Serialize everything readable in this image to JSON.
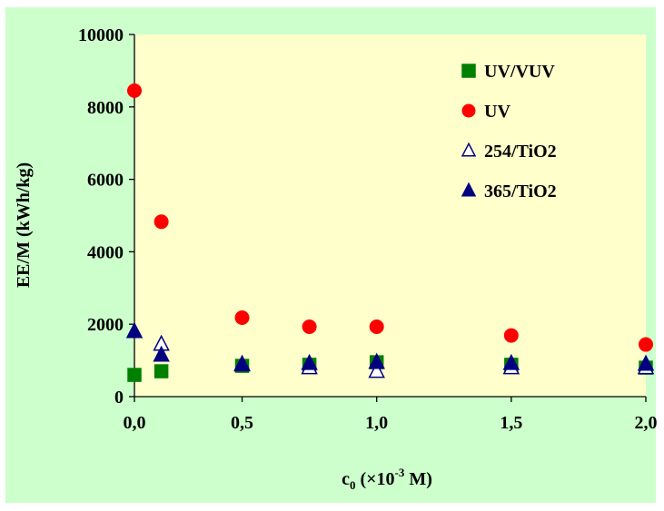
{
  "chart_data": {
    "type": "scatter",
    "title": "",
    "xlabel": {
      "main": "c",
      "sub": "0",
      "rest": " (×10",
      "sup": "-3",
      "end": " M)"
    },
    "ylabel": "EE/M (kWh/kg)",
    "xlim": [
      0.1,
      2.0
    ],
    "ylim": [
      0,
      10000
    ],
    "x_ticks": [
      {
        "value": 0.0,
        "label": "0,0"
      },
      {
        "value": 0.5,
        "label": "0,5"
      },
      {
        "value": 1.0,
        "label": "1,0"
      },
      {
        "value": 1.5,
        "label": "1,5"
      },
      {
        "value": 2.0,
        "label": "2,0"
      }
    ],
    "y_ticks": [
      {
        "value": 0,
        "label": "0"
      },
      {
        "value": 2000,
        "label": "2000"
      },
      {
        "value": 4000,
        "label": "4000"
      },
      {
        "value": 6000,
        "label": "6000"
      },
      {
        "value": 8000,
        "label": "8000"
      },
      {
        "value": 10000,
        "label": "10000"
      }
    ],
    "grid": false,
    "legend_position": "top-right",
    "plot_background": "#ffffcc",
    "outer_background": "#ccffcc",
    "series": [
      {
        "name": "UV/VUV",
        "marker": "square",
        "color": "#008000",
        "filled": true,
        "x": [
          0.1,
          0.2,
          0.5,
          0.75,
          1.0,
          1.5,
          2.0
        ],
        "y": [
          600,
          700,
          850,
          880,
          950,
          880,
          800
        ]
      },
      {
        "name": "UV",
        "marker": "circle",
        "color": "#ff0000",
        "filled": true,
        "x": [
          0.1,
          0.2,
          0.5,
          0.75,
          1.0,
          1.5,
          2.0
        ],
        "y": [
          8450,
          4830,
          2180,
          1930,
          1930,
          1690,
          1440
        ]
      },
      {
        "name": "254/TiO2",
        "marker": "triangle",
        "color": "#000080",
        "filled": false,
        "x": [
          0.2,
          0.5,
          0.75,
          1.0,
          1.5,
          2.0
        ],
        "y": [
          1450,
          880,
          800,
          700,
          800,
          800
        ]
      },
      {
        "name": "365/TiO2",
        "marker": "triangle",
        "color": "#000080",
        "filled": true,
        "x": [
          0.1,
          0.2,
          0.5,
          0.75,
          1.0,
          1.5,
          2.0
        ],
        "y": [
          1800,
          1150,
          900,
          920,
          950,
          920,
          900
        ]
      }
    ]
  }
}
